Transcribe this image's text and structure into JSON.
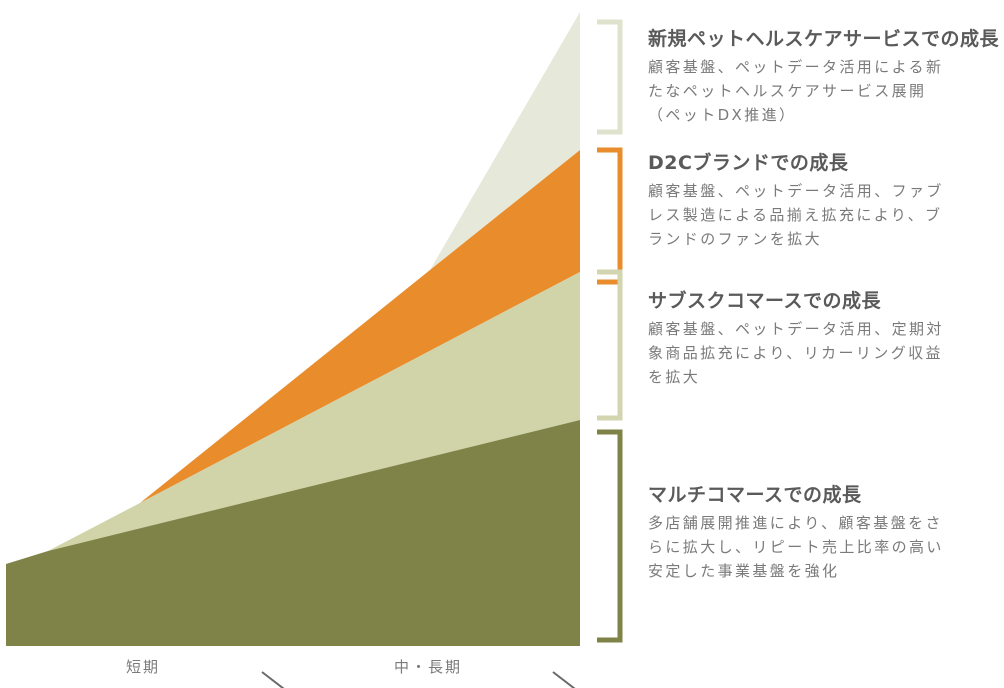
{
  "colors": {
    "multi": "#7f8347",
    "subsc": "#d1d3a8",
    "d2c": "#e98c2c",
    "pet": "#e6e9d9",
    "bracket_pet": "#dfe2cd",
    "bracket_subsc": "#d2d5b0",
    "bracket_d2c": "#e98c2c",
    "bracket_multi": "#7f8347"
  },
  "segments": [
    {
      "id": "pet",
      "title": "新規ペットヘルスケアサービスでの成長",
      "lines": [
        "顧客基盤、ペットデータ活用による新",
        "たなペットヘルスケアサービス展開",
        "（ペットDX推進）"
      ]
    },
    {
      "id": "d2c",
      "title": "D2Cブランドでの成長",
      "lines": [
        "顧客基盤、ペットデータ活用、ファブ",
        "レス製造による品揃え拡充により、ブ",
        "ランドのファンを拡大"
      ]
    },
    {
      "id": "subsc",
      "title": "サブスクコマースでの成長",
      "lines": [
        "顧客基盤、ペットデータ活用、定期対",
        "象商品拡充により、リカーリング収益",
        "を拡大"
      ]
    },
    {
      "id": "multi",
      "title": "マルチコマースでの成長",
      "lines": [
        "多店舗展開推進により、顧客基盤をさ",
        "らに拡大し、リピート売上比率の高い",
        "安定した事業基盤を強化"
      ]
    }
  ],
  "axis": {
    "short_term": "短期",
    "mid_long_term": "中・長期"
  }
}
